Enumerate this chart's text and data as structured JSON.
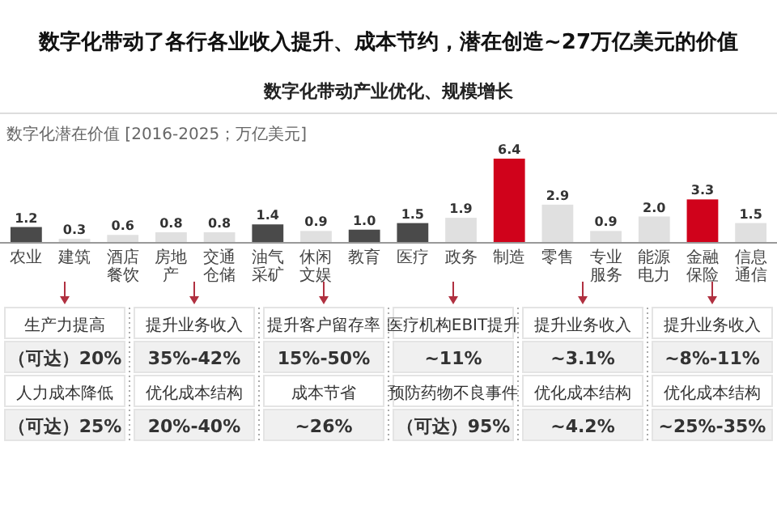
{
  "chart_data": {
    "type": "bar",
    "title": "数字化带动了各行各业收入提升、成本节约，潜在创造~27万亿美元的价值",
    "subtitle": "数字化带动产业优化、规模增长",
    "ylabel": "数字化潜在价值 [2016-2025；万亿美元]",
    "categories": [
      "农业",
      "建筑",
      "酒店餐饮",
      "房地产",
      "交通仓储",
      "油气采矿",
      "休闲文娱",
      "教育",
      "医疗",
      "政务",
      "制造",
      "零售",
      "专业服务",
      "能源电力",
      "金融保险",
      "信息通信"
    ],
    "values": [
      1.2,
      0.3,
      0.6,
      0.8,
      0.8,
      1.4,
      0.9,
      1.0,
      1.5,
      1.9,
      6.4,
      2.9,
      0.9,
      2.0,
      3.3,
      1.5
    ],
    "colors": [
      "#4a4a4a",
      "#e0e0e0",
      "#e0e0e0",
      "#e0e0e0",
      "#e0e0e0",
      "#4a4a4a",
      "#e0e0e0",
      "#4a4a4a",
      "#4a4a4a",
      "#e0e0e0",
      "#d0021b",
      "#e0e0e0",
      "#e0e0e0",
      "#e0e0e0",
      "#d0021b",
      "#e0e0e0"
    ],
    "value_labels": [
      "1.2",
      "0.3",
      "0.6",
      "0.8",
      "0.8",
      "1.4",
      "0.9",
      "1.0",
      "1.5",
      "1.9",
      "6.4",
      "2.9",
      "0.9",
      "2.0",
      "3.3",
      "1.5"
    ],
    "annotations": [
      "生产力提高",
      "（可达）20%",
      "人力成本降低",
      "（可达）25%",
      "提升业务收入",
      "35%-42%",
      "优化成本结构",
      "20%-40%",
      "提升客户留存率",
      "15%-50%",
      "成本节省",
      "~26%",
      "医疗机构EBIT提升",
      "~11%",
      "预防药物不良事件",
      "（可达）95%",
      "提升业务收入",
      "~3.1%",
      "优化成本结构",
      "~4.2%",
      "提升业务收入",
      "~8%-11%",
      "优化成本结构",
      "~25%-35%"
    ]
  }
}
